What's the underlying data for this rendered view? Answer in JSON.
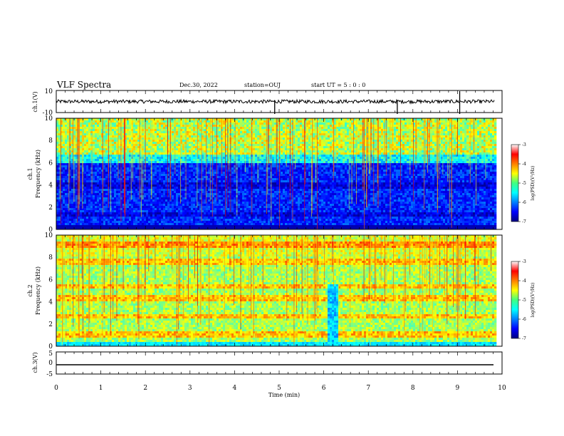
{
  "header": {
    "title": "VLF Spectra",
    "date": "Dec.30, 2022",
    "station": "station=OUJ",
    "start": "start  UT =  5 : 0 : 0"
  },
  "xaxis": {
    "label": "Time (min)",
    "ticks": [
      "0",
      "1",
      "2",
      "3",
      "4",
      "5",
      "6",
      "7",
      "8",
      "9",
      "10"
    ]
  },
  "colorbar": {
    "label": "log(PSD)(V²/Hz)",
    "ticks": [
      "-3",
      "-4",
      "-5",
      "-6",
      "-7"
    ]
  },
  "chart_data": [
    {
      "type": "line",
      "title": "",
      "ylabel": "ch.1(V)",
      "xlim": [
        0,
        10
      ],
      "ylim": [
        -10,
        10
      ],
      "yticks": [
        "10",
        "-10"
      ],
      "series": [
        {
          "values": [
            [
              0,
              0
            ],
            [
              4.9,
              0
            ],
            [
              5.0,
              0
            ],
            [
              9.8,
              0
            ]
          ]
        }
      ],
      "notes_spikes": [
        4.9,
        7.65,
        9.05
      ]
    },
    {
      "type": "heatmap",
      "ylabel": "ch.1",
      "ylabel2": "Frequency (kHz)",
      "xlim": [
        0,
        9.83
      ],
      "ylim": [
        0,
        10
      ],
      "yticks": [
        "0",
        "2",
        "4",
        "6",
        "8",
        "10"
      ],
      "colorscale": {
        "range": [
          -7,
          -3
        ],
        "label": "log(PSD)(V²/Hz)"
      }
    },
    {
      "type": "heatmap",
      "ylabel": "ch.2",
      "ylabel2": "Frequency (kHz)",
      "xlim": [
        0,
        9.83
      ],
      "ylim": [
        0,
        10
      ],
      "yticks": [
        "0",
        "2",
        "4",
        "6",
        "8",
        "10"
      ],
      "colorscale": {
        "range": [
          -7,
          -3
        ],
        "label": "log(PSD)(V²/Hz)"
      }
    },
    {
      "type": "line",
      "ylabel": "ch.3(V)",
      "xlim": [
        0,
        10
      ],
      "ylim": [
        -5,
        5
      ],
      "yticks": [
        "5",
        "0",
        "-5"
      ],
      "series": [
        {
          "values": [
            [
              0,
              -2
            ],
            [
              9.8,
              -2
            ]
          ]
        }
      ]
    }
  ]
}
